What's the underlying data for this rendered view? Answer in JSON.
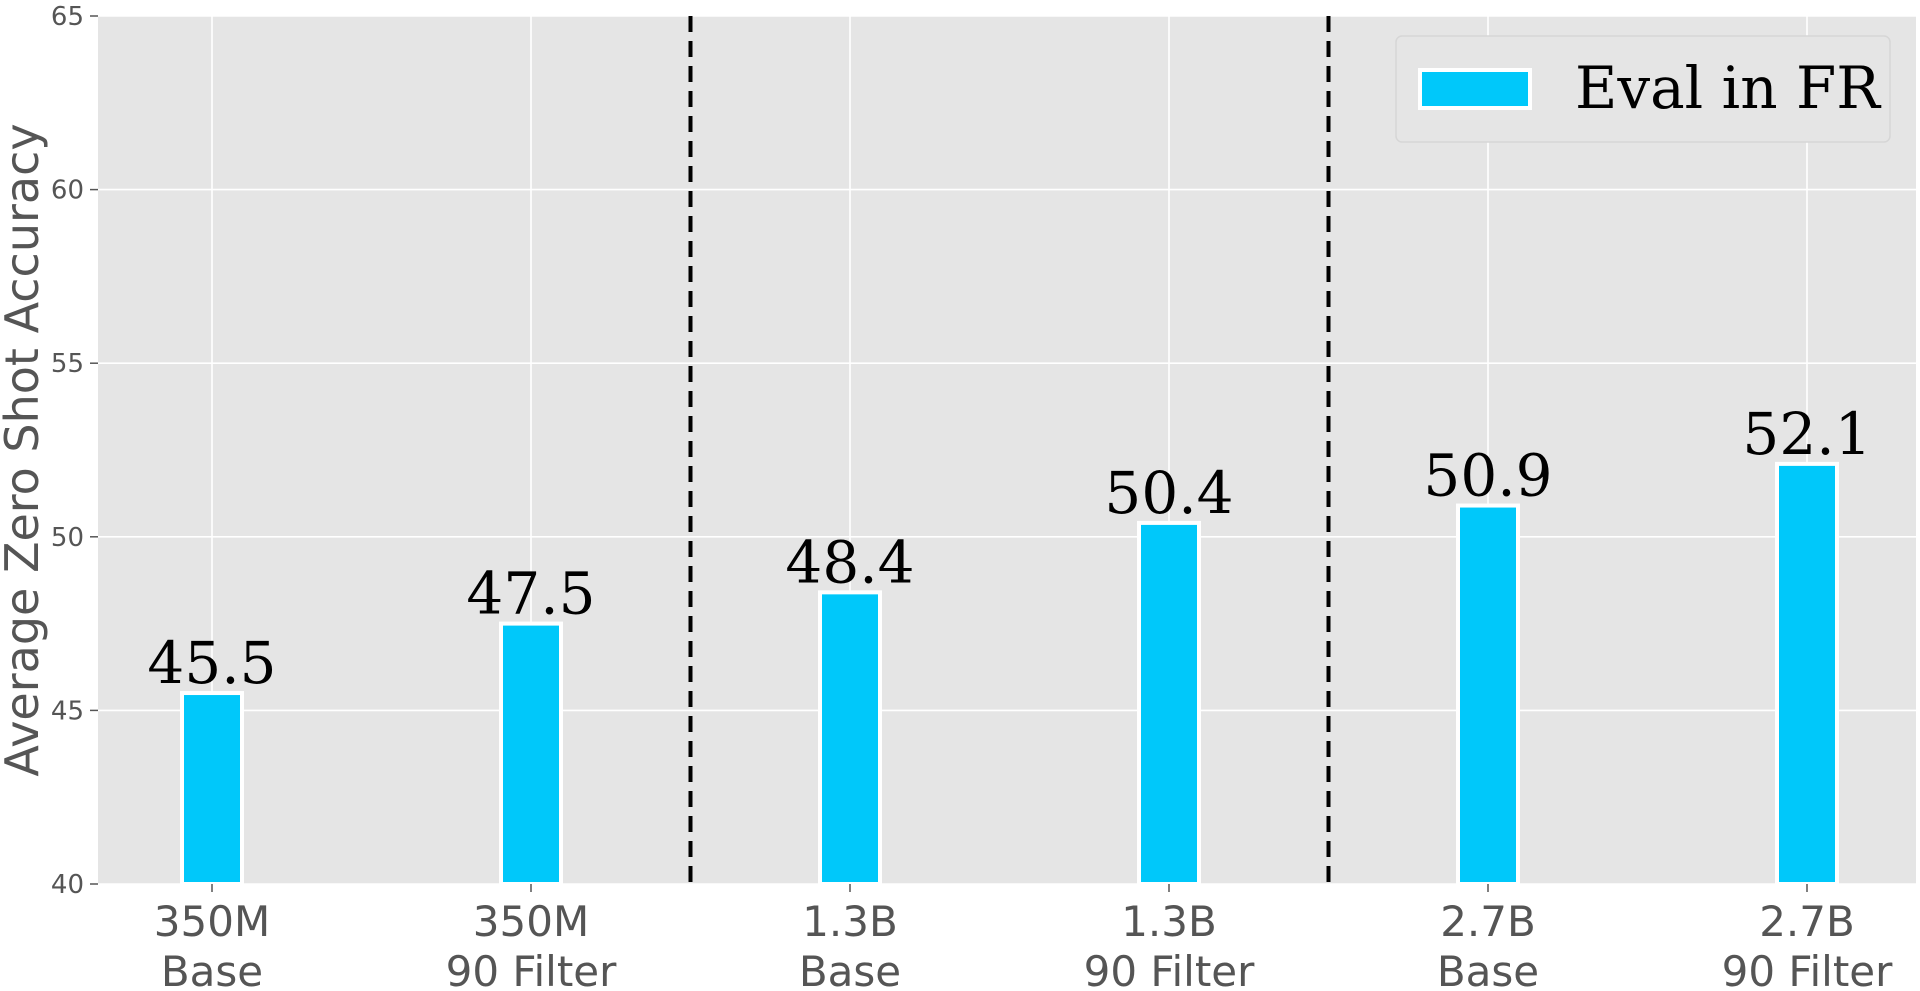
{
  "chart_data": {
    "type": "bar",
    "categories": [
      [
        "350M",
        "Base"
      ],
      [
        "350M",
        "90 Filter"
      ],
      [
        "1.3B",
        "Base"
      ],
      [
        "1.3B",
        "90 Filter"
      ],
      [
        "2.7B",
        "Base"
      ],
      [
        "2.7B",
        "90 Filter"
      ]
    ],
    "series": [
      {
        "name": "Eval in FR",
        "values": [
          45.5,
          47.5,
          48.4,
          50.4,
          50.9,
          52.1
        ],
        "color": "#00C8FA"
      }
    ],
    "data_labels": [
      "45.5",
      "47.5",
      "48.4",
      "50.4",
      "50.9",
      "52.1"
    ],
    "title": "",
    "xlabel": "",
    "ylabel": "Average Zero Shot Accuracy",
    "ylim": [
      40,
      65
    ],
    "yticks": [
      40,
      45,
      50,
      55,
      60,
      65
    ],
    "grid": true,
    "legend_position": "top-right",
    "separators_between": [
      [
        1,
        2
      ],
      [
        3,
        4
      ]
    ],
    "background_color": "#E5E5E5",
    "grid_color": "#FFFFFF",
    "separator_color": "#000000"
  }
}
